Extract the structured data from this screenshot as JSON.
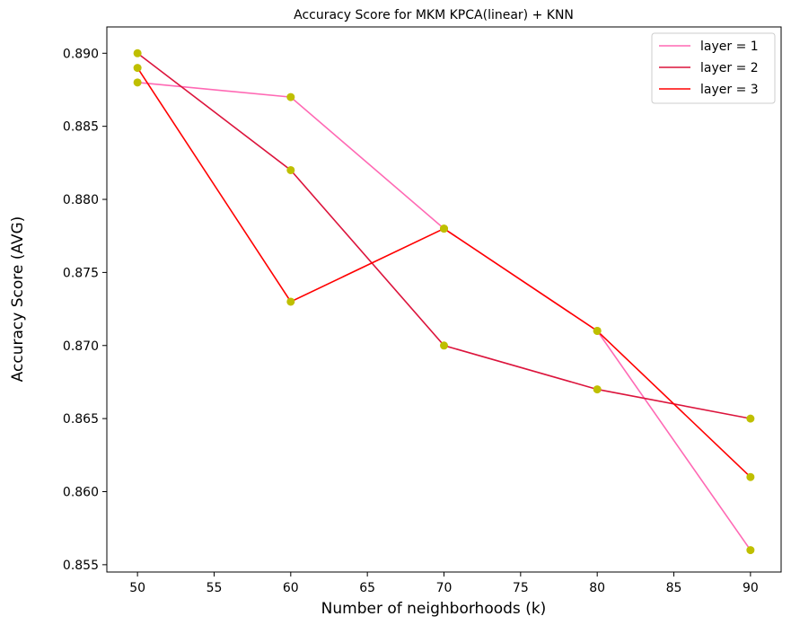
{
  "chart_data": {
    "type": "line",
    "title": "Accuracy Score for MKM KPCA(linear) + KNN",
    "xlabel": "Number of neighborhoods (k)",
    "ylabel": "Accuracy Score (AVG)",
    "x": [
      50,
      60,
      70,
      80,
      90
    ],
    "xlim": [
      48,
      92
    ],
    "ylim": [
      0.8545,
      0.8918
    ],
    "xticks": [
      50,
      55,
      60,
      65,
      70,
      75,
      80,
      85,
      90
    ],
    "yticks": [
      0.855,
      0.86,
      0.865,
      0.87,
      0.875,
      0.88,
      0.885,
      0.89
    ],
    "ytick_labels": [
      "0.855",
      "0.860",
      "0.865",
      "0.870",
      "0.875",
      "0.880",
      "0.885",
      "0.890"
    ],
    "grid": false,
    "legend_position": "top-right",
    "marker_color": "#bfbf00",
    "series": [
      {
        "name": "layer = 1",
        "color": "#ff69b4",
        "values": [
          0.888,
          0.887,
          0.878,
          0.871,
          0.856
        ]
      },
      {
        "name": "layer = 2",
        "color": "#dc143c",
        "values": [
          0.89,
          0.882,
          0.87,
          0.867,
          0.865
        ]
      },
      {
        "name": "layer = 3",
        "color": "#ff0000",
        "values": [
          0.889,
          0.873,
          0.878,
          0.871,
          0.861
        ]
      }
    ]
  }
}
